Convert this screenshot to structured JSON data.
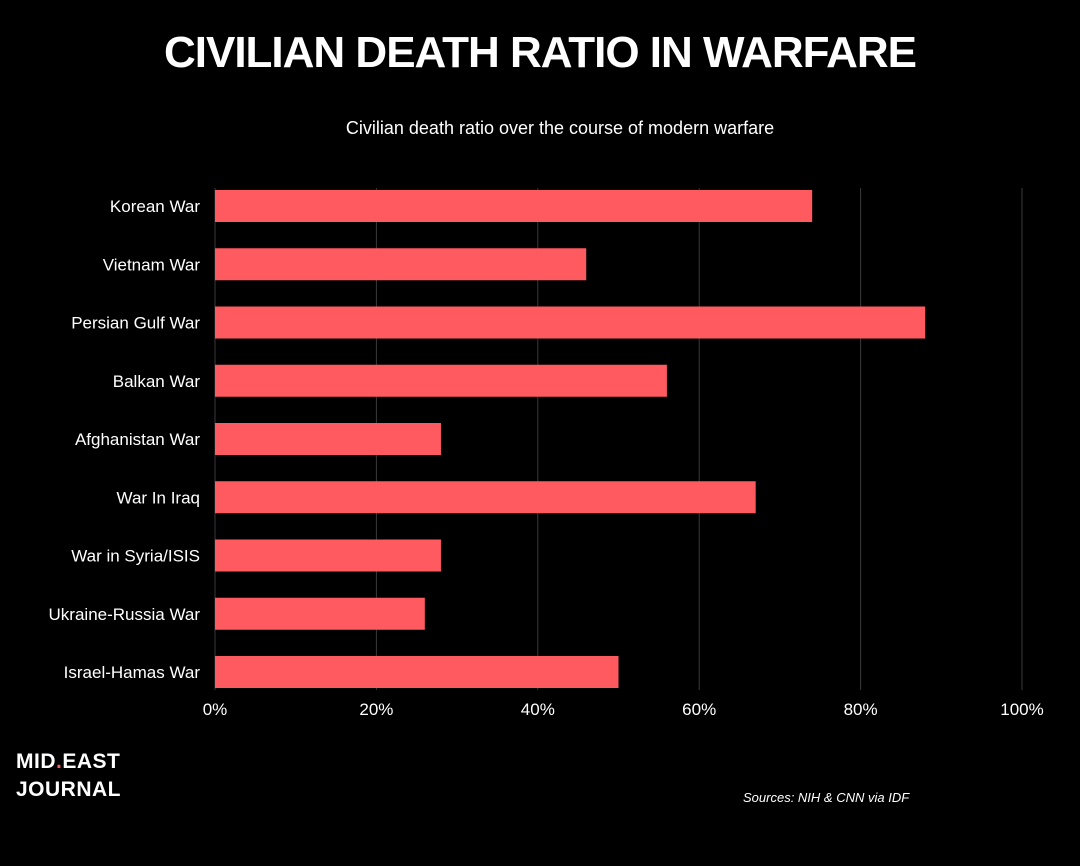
{
  "colors": {
    "background": "#000000",
    "bar": "#ff5a5f",
    "grid": "#3a3a3a",
    "text": "#ffffff"
  },
  "logo": {
    "line1_left": "MID",
    "line1_dot": ".",
    "line1_right": "EAST",
    "line2": "JOURNAL"
  },
  "sources": "Sources: NIH & CNN via IDF",
  "chart_data": {
    "type": "bar",
    "orientation": "horizontal",
    "title": "CIVILIAN DEATH RATIO IN WARFARE",
    "subtitle": "Civilian death ratio over the course of modern warfare",
    "categories": [
      "Korean War",
      "Vietnam War",
      "Persian Gulf War",
      "Balkan War",
      "Afghanistan War",
      "War In Iraq",
      "War in Syria/ISIS",
      "Ukraine-Russia War",
      "Israel-Hamas War"
    ],
    "values": [
      74,
      46,
      88,
      56,
      28,
      67,
      28,
      26,
      50
    ],
    "xlim": [
      0,
      100
    ],
    "xticks": [
      0,
      20,
      40,
      60,
      80,
      100
    ],
    "xtick_labels": [
      "0%",
      "20%",
      "40%",
      "60%",
      "80%",
      "100%"
    ],
    "unit": "%",
    "grid": "vertical",
    "legend": "none"
  }
}
